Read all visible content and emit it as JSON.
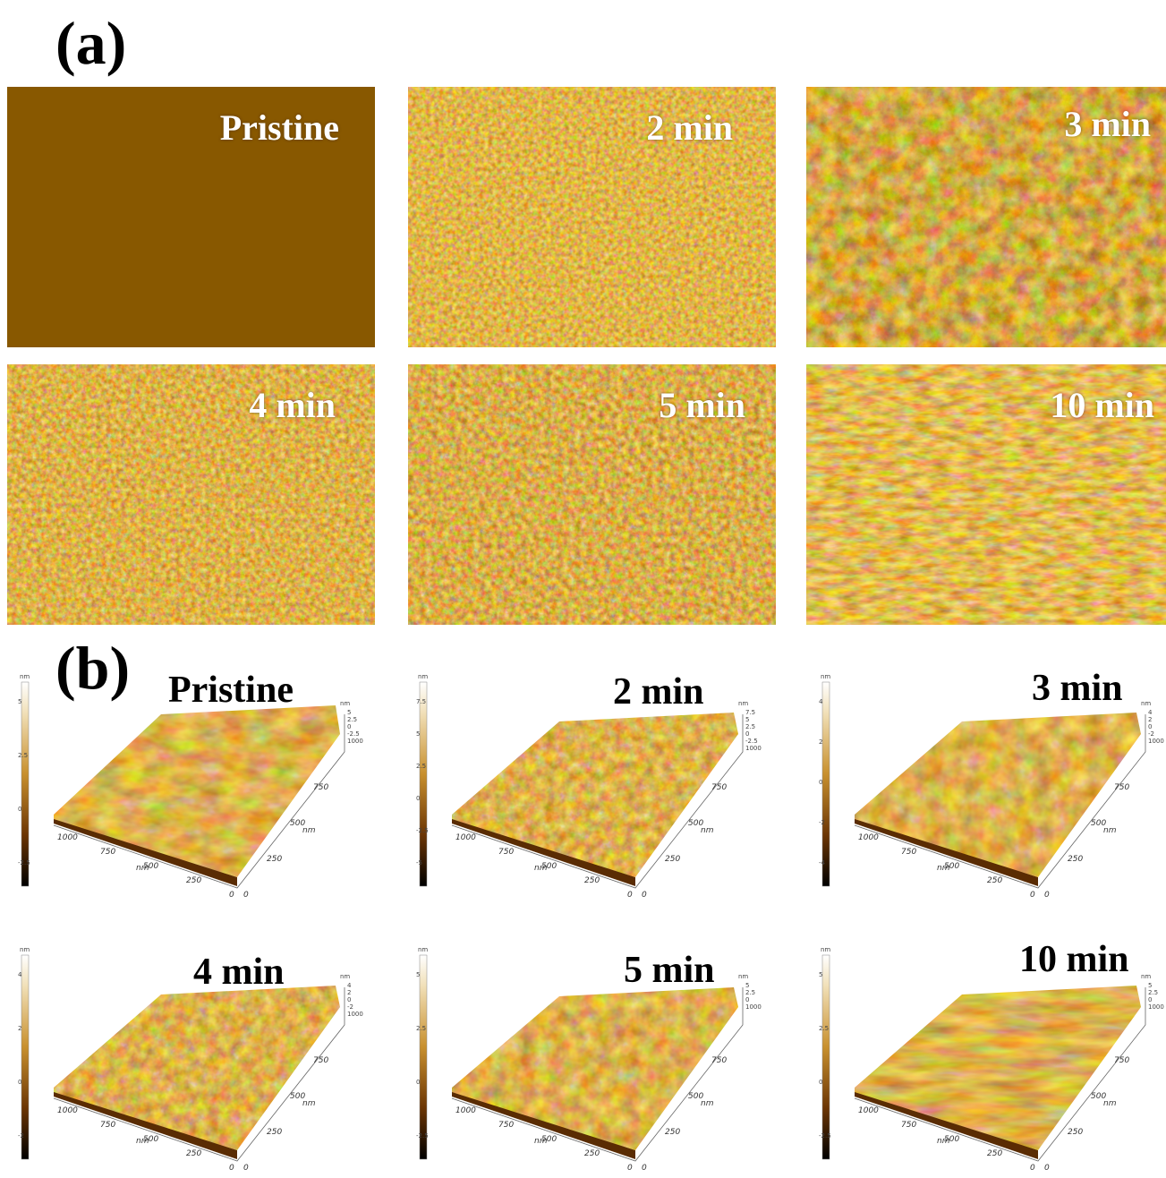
{
  "panel_a": {
    "letter": "(a)",
    "images": [
      {
        "label": "Pristine"
      },
      {
        "label": "2 min"
      },
      {
        "label": "3 min"
      },
      {
        "label": "4 min"
      },
      {
        "label": "5 min"
      },
      {
        "label": "10 min"
      }
    ]
  },
  "panel_b": {
    "letter": "(b)",
    "unit": "nm",
    "plots": [
      {
        "label": "Pristine",
        "scale_ticks": [
          "5",
          "2.5",
          "0",
          "-2.5"
        ],
        "z_ticks": [
          "5",
          "2.5",
          "0",
          "-2.5",
          "1000"
        ]
      },
      {
        "label": "2 min",
        "scale_ticks": [
          "7.5",
          "5",
          "2.5",
          "0",
          "-2.5",
          "-5"
        ],
        "z_ticks": [
          "7.5",
          "5",
          "2.5",
          "0",
          "-2.5",
          "1000"
        ]
      },
      {
        "label": "3 min",
        "scale_ticks": [
          "4",
          "2",
          "0",
          "-2",
          "-4"
        ],
        "z_ticks": [
          "4",
          "2",
          "0",
          "-2",
          "1000"
        ]
      },
      {
        "label": "4 min",
        "scale_ticks": [
          "4",
          "2",
          "0",
          "-2"
        ],
        "z_ticks": [
          "4",
          "2",
          "0",
          "-2",
          "1000"
        ]
      },
      {
        "label": "5 min",
        "scale_ticks": [
          "5",
          "2.5",
          "0",
          "-2.5"
        ],
        "z_ticks": [
          "5",
          "2.5",
          "0",
          "1000"
        ]
      },
      {
        "label": "10 min",
        "scale_ticks": [
          "5",
          "2.5",
          "0",
          "-2.5"
        ],
        "z_ticks": [
          "5",
          "2.5",
          "0",
          "1000"
        ]
      }
    ],
    "axis_ticks_x": [
      "1000",
      "750",
      "500",
      "250",
      "0"
    ],
    "axis_ticks_y": [
      "0",
      "250",
      "500",
      "750"
    ],
    "axis_unit": "nm"
  }
}
